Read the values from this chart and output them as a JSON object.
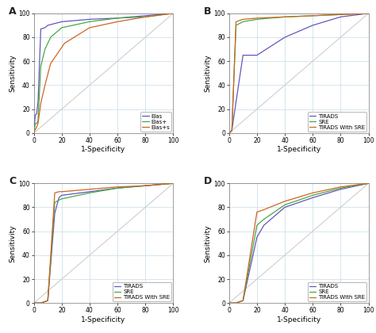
{
  "panel_A": {
    "label": "A",
    "lines": [
      {
        "name": "Elas",
        "color": "#6655bb",
        "x": [
          0,
          1,
          2,
          3,
          5,
          8,
          10,
          20,
          40,
          60,
          80,
          100
        ],
        "y": [
          0,
          15,
          16,
          26,
          87,
          88,
          90,
          93,
          95,
          96,
          98,
          100
        ]
      },
      {
        "name": "Elas+",
        "color": "#44aa44",
        "x": [
          0,
          1,
          2,
          3,
          5,
          8,
          12,
          20,
          40,
          60,
          80,
          100
        ],
        "y": [
          0,
          8,
          8,
          10,
          56,
          70,
          80,
          88,
          93,
          96,
          97,
          100
        ]
      },
      {
        "name": "Elas+s",
        "color": "#cc6622",
        "x": [
          0,
          1,
          2,
          3,
          5,
          8,
          12,
          22,
          40,
          60,
          80,
          100
        ],
        "y": [
          0,
          3,
          5,
          8,
          25,
          40,
          58,
          75,
          88,
          93,
          97,
          100
        ]
      }
    ],
    "xlabel": "1-Specificity",
    "ylabel": "Sensitivity",
    "xlim": [
      0,
      100
    ],
    "ylim": [
      0,
      100
    ]
  },
  "panel_B": {
    "label": "B",
    "lines": [
      {
        "name": "TIRADS",
        "color": "#6655bb",
        "x": [
          0,
          2,
          5,
          10,
          15,
          20,
          40,
          60,
          80,
          100
        ],
        "y": [
          0,
          2,
          26,
          65,
          65,
          65,
          80,
          90,
          97,
          100
        ]
      },
      {
        "name": "SRE",
        "color": "#44aa44",
        "x": [
          0,
          2,
          5,
          10,
          20,
          40,
          60,
          80,
          100
        ],
        "y": [
          0,
          2,
          90,
          93,
          95,
          97,
          98,
          99,
          100
        ]
      },
      {
        "name": "TIRADS With SRE",
        "color": "#cc6622",
        "x": [
          0,
          2,
          5,
          10,
          20,
          40,
          60,
          80,
          100
        ],
        "y": [
          0,
          2,
          93,
          95,
          96,
          97,
          98,
          99,
          100
        ]
      }
    ],
    "xlabel": "1-Specificity",
    "ylabel": "Sensitivity",
    "xlim": [
      0,
      100
    ],
    "ylim": [
      0,
      100
    ]
  },
  "panel_C": {
    "label": "C",
    "lines": [
      {
        "name": "TIRADS",
        "color": "#6655bb",
        "x": [
          0,
          2,
          5,
          10,
          15,
          18,
          20,
          40,
          60,
          80,
          100
        ],
        "y": [
          0,
          0,
          0,
          2,
          75,
          88,
          90,
          93,
          96,
          98,
          100
        ]
      },
      {
        "name": "SRE",
        "color": "#44aa44",
        "x": [
          0,
          2,
          5,
          10,
          15,
          18,
          20,
          40,
          60,
          80,
          100
        ],
        "y": [
          0,
          0,
          0,
          2,
          84,
          86,
          87,
          92,
          96,
          98,
          100
        ]
      },
      {
        "name": "TIRADS With SRE",
        "color": "#cc6622",
        "x": [
          0,
          2,
          5,
          10,
          15,
          18,
          20,
          40,
          60,
          80,
          100
        ],
        "y": [
          0,
          0,
          0,
          2,
          92,
          93,
          93,
          95,
          97,
          98,
          100
        ]
      }
    ],
    "xlabel": "1-Specificity",
    "ylabel": "Sensitivity",
    "xlim": [
      0,
      100
    ],
    "ylim": [
      0,
      100
    ]
  },
  "panel_D": {
    "label": "D",
    "lines": [
      {
        "name": "TIRADS",
        "color": "#6655bb",
        "x": [
          0,
          2,
          5,
          10,
          20,
          25,
          40,
          60,
          80,
          100
        ],
        "y": [
          0,
          0,
          0,
          2,
          55,
          65,
          80,
          88,
          95,
          100
        ]
      },
      {
        "name": "SRE",
        "color": "#44aa44",
        "x": [
          0,
          2,
          5,
          10,
          20,
          25,
          40,
          60,
          80,
          100
        ],
        "y": [
          0,
          0,
          0,
          2,
          65,
          70,
          82,
          90,
          96,
          100
        ]
      },
      {
        "name": "TIRADS With SRE",
        "color": "#cc6622",
        "x": [
          0,
          2,
          5,
          10,
          20,
          25,
          40,
          60,
          80,
          100
        ],
        "y": [
          0,
          0,
          0,
          2,
          76,
          78,
          85,
          92,
          97,
          100
        ]
      }
    ],
    "xlabel": "1-Specificity",
    "ylabel": "Sensitivity",
    "xlim": [
      0,
      100
    ],
    "ylim": [
      0,
      100
    ]
  },
  "tick_labels": [
    0,
    20,
    40,
    60,
    80,
    100
  ],
  "background_color": "#ffffff",
  "grid_color": "#c5dce8",
  "diagonal_color": "#c8c8c8",
  "legend_fontsize": 5.0,
  "axis_label_fontsize": 6.5,
  "tick_fontsize": 5.5,
  "panel_label_fontsize": 9,
  "line_width": 0.9
}
